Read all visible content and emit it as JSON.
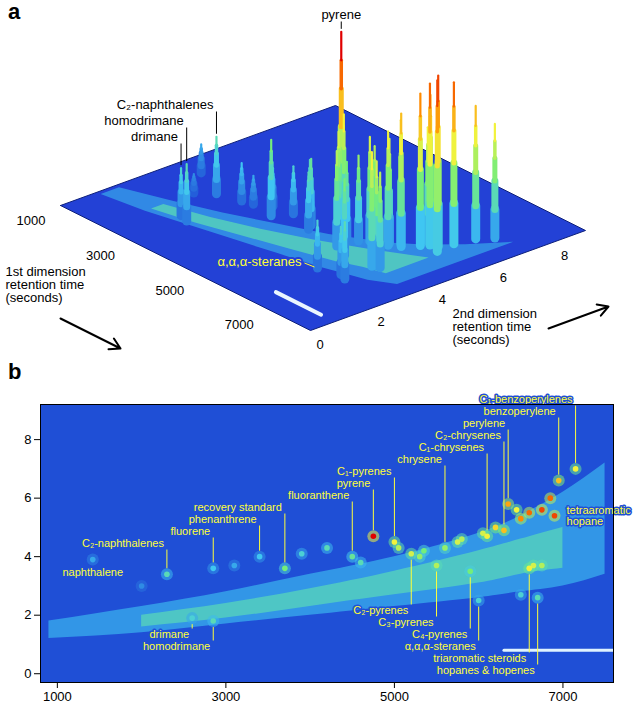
{
  "chart_data": {
    "peaks": {
      "name": [
        "naphthalene",
        "C₂-naphthalenes",
        "fluorene",
        "drimane",
        "homodrimane",
        "phenanthrene",
        "recovery standard",
        "fluoranthene",
        "pyrene",
        "C₁-pyrenes",
        "C₂-pyrenes",
        "chrysene",
        "C₃-pyrenes",
        "C₄-pyrenes",
        "C₁-chrysenes",
        "C₂-chrysenes",
        "perylene",
        "benzoperylene",
        "C₁-benzoperylenes",
        "tetraaromatic hopane",
        "triaromatic steroids",
        "hopanes & hopenes",
        "α,α,α-steranes",
        null,
        null,
        null,
        null,
        null,
        null,
        null,
        null,
        null,
        null,
        null,
        null,
        null,
        null,
        null,
        null,
        null,
        null,
        null,
        null
      ],
      "x": [
        1420,
        2300,
        2850,
        2600,
        2850,
        3400,
        3700,
        4500,
        4750,
        5000,
        5200,
        5600,
        5500,
        5900,
        6100,
        6300,
        6350,
        6950,
        7150,
        6900,
        6600,
        6700,
        6000,
        5050,
        5300,
        5350,
        5750,
        5800,
        6050,
        6200,
        6450,
        6500,
        6600,
        6750,
        6850,
        6650,
        6750,
        4200,
        3900,
        4600,
        2000,
        3100,
        6500
      ],
      "y": [
        3.9,
        3.4,
        3.6,
        1.9,
        1.8,
        4.0,
        3.6,
        4.0,
        4.7,
        4.5,
        4.1,
        4.3,
        3.7,
        3.5,
        4.7,
        4.9,
        5.8,
        6.6,
        7.0,
        5.4,
        3.6,
        2.6,
        2.5,
        4.3,
        4.0,
        4.2,
        4.5,
        4.6,
        4.8,
        5.0,
        5.6,
        5.3,
        5.5,
        5.6,
        6.0,
        3.7,
        3.7,
        4.3,
        4.1,
        3.8,
        3.0,
        3.7,
        2.7
      ],
      "intensity": [
        15,
        30,
        20,
        25,
        30,
        20,
        40,
        35,
        100,
        60,
        55,
        45,
        50,
        40,
        60,
        70,
        75,
        70,
        60,
        90,
        60,
        30,
        25,
        50,
        45,
        40,
        55,
        50,
        55,
        65,
        60,
        80,
        85,
        90,
        85,
        55,
        50,
        30,
        25,
        30,
        10,
        15,
        25
      ]
    },
    "intensity_range": [
      0,
      100
    ],
    "band": {
      "x": [
        900,
        2000,
        3000,
        4000,
        5000,
        6000,
        6500,
        7000,
        7500
      ],
      "low": [
        1.2,
        1.4,
        1.7,
        2.0,
        2.3,
        2.6,
        2.8,
        3.0,
        3.4
      ],
      "high": [
        1.8,
        2.3,
        2.8,
        3.4,
        4.0,
        4.8,
        5.4,
        6.2,
        7.2
      ],
      "intensity": 15
    },
    "band_core": {
      "x": [
        2000,
        3000,
        4000,
        5000,
        6000,
        6500,
        7000
      ],
      "low": [
        1.6,
        1.9,
        2.3,
        2.7,
        3.1,
        3.4,
        3.6
      ],
      "high": [
        2.0,
        2.4,
        2.9,
        3.5,
        4.2,
        4.6,
        5.0
      ],
      "intensity": 30
    },
    "bleed": {
      "x": [
        6300,
        7600
      ],
      "y": 0.8
    },
    "panels": [
      {
        "label": "a",
        "type": "surface",
        "xlabel": "1st dimension\nretention time\n(seconds)",
        "ylabel": "2nd dimension\nretention time\n(seconds)",
        "xlim": [
          800,
          8000
        ],
        "ylim": [
          0,
          9
        ],
        "xticks": [
          1000,
          3000,
          5000,
          7000
        ],
        "yticks": [
          0,
          2,
          4,
          6,
          8
        ],
        "annotations": [
          "drimane",
          "homodrimane",
          "C₂-naphthalenes",
          "pyrene",
          "α,α,α-steranes"
        ]
      },
      {
        "label": "b",
        "type": "heatmap",
        "xlim": [
          800,
          7600
        ],
        "ylim": [
          -0.3,
          9.2
        ],
        "xticks": [
          1000,
          3000,
          5000,
          7000
        ],
        "yticks": [
          0,
          2,
          4,
          6,
          8
        ],
        "annotations": [
          "naphthalene",
          "C₂-naphthalenes",
          "fluorene",
          "phenanthrene",
          "recovery standard",
          "fluoranthene",
          "pyrene",
          "C₁-pyrenes",
          "chrysene",
          "C₁-chrysenes",
          "C₂-chrysenes",
          "perylene",
          "benzoperylene",
          "C₁-benzoperylenes",
          "tetraaromatic hopane",
          "drimane",
          "homodrimane",
          "C₂-pyrenes",
          "C₃-pyrenes",
          "C₄-pyrenes",
          "α,α,α-steranes",
          "triaromatic steroids",
          "hopanes & hopenes"
        ]
      }
    ]
  }
}
